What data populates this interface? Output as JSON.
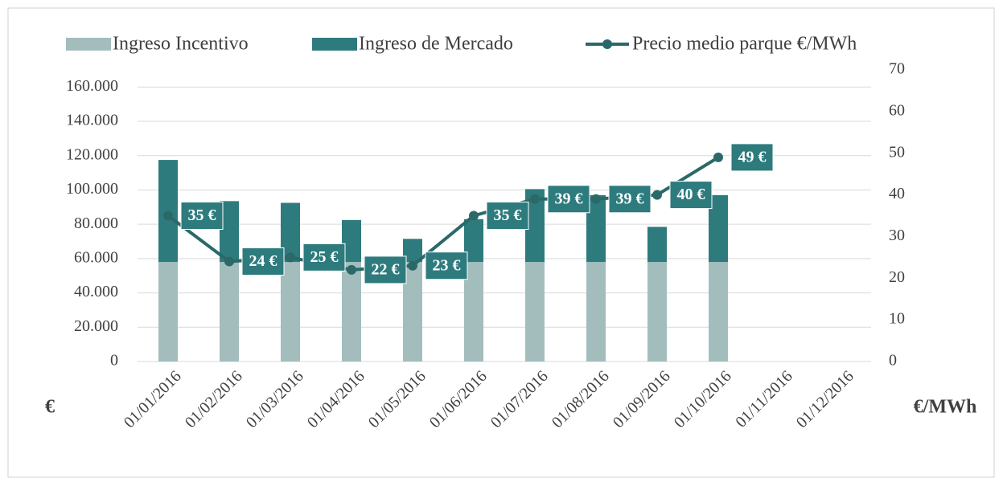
{
  "chart_data": {
    "type": "bar",
    "stacked": true,
    "x_axis_label": "€",
    "y2_axis_label": "€/MWh",
    "categories": [
      "01/01/2016",
      "01/02/2016",
      "01/03/2016",
      "01/04/2016",
      "01/05/2016",
      "01/06/2016",
      "01/07/2016",
      "01/08/2016",
      "01/09/2016",
      "01/10/2016",
      "01/11/2016",
      "01/12/2016"
    ],
    "series": [
      {
        "name": "Ingreso Incentivo",
        "color": "#a3bdbd",
        "values": [
          58000,
          58000,
          58000,
          58000,
          58000,
          58000,
          58000,
          58000,
          58000,
          58000,
          null,
          null
        ]
      },
      {
        "name": "Ingreso de Mercado",
        "color": "#2e7b7e",
        "values": [
          59500,
          35500,
          34500,
          24500,
          13500,
          25000,
          42500,
          39000,
          20500,
          39000,
          null,
          null
        ]
      },
      {
        "name": "Precio medio parque €/MWh",
        "type": "line",
        "axis": "y2",
        "color": "#2b6969",
        "values": [
          35,
          24,
          25,
          22,
          23,
          35,
          39,
          39,
          40,
          49,
          null,
          null
        ],
        "value_labels": [
          "35 €",
          "24 €",
          "25 €",
          "22 €",
          "23 €",
          "35 €",
          "39 €",
          "39 €",
          "40 €",
          "49 €",
          null,
          null
        ]
      }
    ],
    "ylim": [
      0,
      170000
    ],
    "yticks": [
      0,
      {
        "value": 20000,
        "label": "20.000"
      },
      {
        "value": 40000,
        "label": "40.000"
      },
      {
        "value": 60000,
        "label": "60.000"
      },
      {
        "value": 80000,
        "label": "80.000"
      },
      {
        "value": 100000,
        "label": "100.000"
      },
      {
        "value": 120000,
        "label": "120.000"
      },
      {
        "value": 140000,
        "label": "140.000"
      },
      {
        "value": 160000,
        "label": "160.000"
      }
    ],
    "y2lim": [
      0,
      70
    ],
    "y2ticks": [
      0,
      10,
      20,
      30,
      40,
      50,
      60,
      70
    ],
    "grid": true,
    "legend": "top"
  }
}
